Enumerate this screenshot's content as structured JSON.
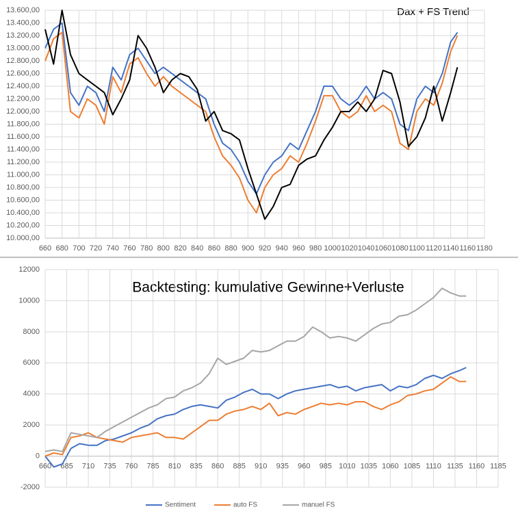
{
  "chart_data": [
    {
      "type": "line",
      "title": "Dax + FS Trend",
      "x": [
        660,
        670,
        680,
        690,
        700,
        710,
        720,
        730,
        740,
        750,
        760,
        770,
        780,
        790,
        800,
        810,
        820,
        830,
        840,
        850,
        860,
        870,
        880,
        890,
        900,
        910,
        920,
        930,
        940,
        950,
        960,
        970,
        980,
        990,
        1000,
        1010,
        1020,
        1030,
        1040,
        1050,
        1060,
        1070,
        1080,
        1090,
        1100,
        1110,
        1120,
        1130,
        1140,
        1148
      ],
      "series": [
        {
          "color": "#4472c4",
          "values": [
            13000,
            13300,
            13400,
            12300,
            12100,
            12400,
            12300,
            12000,
            12700,
            12500,
            12900,
            13000,
            12800,
            12600,
            12700,
            12600,
            12500,
            12400,
            12300,
            12200,
            11800,
            11500,
            11400,
            11200,
            10900,
            10700,
            11000,
            11200,
            11300,
            11500,
            11400,
            11700,
            12000,
            12400,
            12400,
            12200,
            12100,
            12200,
            12400,
            12200,
            12300,
            12200,
            11800,
            11700,
            12200,
            12400,
            12300,
            12600,
            13100,
            13250
          ]
        },
        {
          "color": "#ed7d31",
          "values": [
            12800,
            13150,
            13250,
            12000,
            11900,
            12200,
            12100,
            11800,
            12550,
            12300,
            12750,
            12850,
            12600,
            12400,
            12550,
            12400,
            12300,
            12200,
            12100,
            12000,
            11600,
            11300,
            11150,
            10950,
            10600,
            10400,
            10800,
            11000,
            11100,
            11300,
            11200,
            11500,
            11850,
            12250,
            12250,
            12000,
            11900,
            12000,
            12250,
            12000,
            12100,
            12000,
            11500,
            11400,
            12000,
            12200,
            12100,
            12450,
            12950,
            13200
          ]
        },
        {
          "color": "#000000",
          "values": [
            13300,
            12750,
            13600,
            12900,
            12600,
            12500,
            12400,
            12300,
            11950,
            12200,
            12500,
            13200,
            13000,
            12700,
            12300,
            12500,
            12600,
            12550,
            12350,
            11850,
            12000,
            11700,
            11650,
            11550,
            11100,
            10700,
            10300,
            10500,
            10800,
            10850,
            11150,
            11250,
            11300,
            11550,
            11750,
            12000,
            12000,
            12150,
            12000,
            12200,
            12650,
            12600,
            12150,
            11450,
            11600,
            11900,
            12400,
            11850,
            12300,
            12700
          ]
        }
      ],
      "xlim": [
        660,
        1180
      ],
      "xticks": [
        660,
        680,
        700,
        720,
        740,
        760,
        780,
        800,
        820,
        840,
        860,
        880,
        900,
        920,
        940,
        960,
        980,
        1000,
        1020,
        1040,
        1060,
        1080,
        1100,
        1120,
        1140,
        1160,
        1180
      ],
      "ylim": [
        10000,
        13600
      ],
      "yticks": [
        {
          "value": 10000,
          "label": "10.000,00"
        },
        {
          "value": 10200,
          "label": "10.200,00"
        },
        {
          "value": 10400,
          "label": "10.400,00"
        },
        {
          "value": 10600,
          "label": "10.600,00"
        },
        {
          "value": 10800,
          "label": "10.800,00"
        },
        {
          "value": 11000,
          "label": "11.000,00"
        },
        {
          "value": 11200,
          "label": "11.200,00"
        },
        {
          "value": 11400,
          "label": "11.400,00"
        },
        {
          "value": 11600,
          "label": "11.600,00"
        },
        {
          "value": 11800,
          "label": "11.800,00"
        },
        {
          "value": 12000,
          "label": "12.000,00"
        },
        {
          "value": 12200,
          "label": "12.200,00"
        },
        {
          "value": 12400,
          "label": "12.400,00"
        },
        {
          "value": 12600,
          "label": "12.600,00"
        },
        {
          "value": 12800,
          "label": "12.800,00"
        },
        {
          "value": 13000,
          "label": "13.000,00"
        },
        {
          "value": 13200,
          "label": "13.200,00"
        },
        {
          "value": 13400,
          "label": "13.400,00"
        },
        {
          "value": 13600,
          "label": "13.600,00"
        }
      ],
      "grid": true
    },
    {
      "type": "line",
      "title": "Backtesting: kumulative Gewinne+Verluste",
      "x": [
        660,
        670,
        680,
        690,
        700,
        710,
        720,
        730,
        740,
        750,
        760,
        770,
        780,
        790,
        800,
        810,
        820,
        830,
        840,
        850,
        860,
        870,
        880,
        890,
        900,
        910,
        920,
        930,
        940,
        950,
        960,
        970,
        980,
        990,
        1000,
        1010,
        1020,
        1030,
        1040,
        1050,
        1060,
        1070,
        1080,
        1090,
        1100,
        1110,
        1120,
        1130,
        1140,
        1148
      ],
      "series": [
        {
          "name": "Sentiment",
          "color": "#4472c4",
          "values": [
            0,
            -700,
            -500,
            500,
            800,
            700,
            700,
            1000,
            1100,
            1300,
            1500,
            1800,
            2000,
            2400,
            2600,
            2700,
            3000,
            3200,
            3300,
            3200,
            3100,
            3600,
            3800,
            4100,
            4300,
            4000,
            4000,
            3700,
            4000,
            4200,
            4300,
            4400,
            4500,
            4600,
            4400,
            4500,
            4200,
            4400,
            4500,
            4600,
            4200,
            4500,
            4400,
            4600,
            5000,
            5200,
            5000,
            5300,
            5500,
            5700
          ]
        },
        {
          "name": "auto FS",
          "color": "#ed7d31",
          "values": [
            0,
            200,
            100,
            1200,
            1300,
            1500,
            1200,
            1100,
            1000,
            900,
            1200,
            1300,
            1400,
            1500,
            1200,
            1200,
            1100,
            1500,
            1900,
            2300,
            2300,
            2700,
            2900,
            3000,
            3200,
            3000,
            3400,
            2600,
            2800,
            2700,
            3000,
            3200,
            3400,
            3300,
            3400,
            3300,
            3500,
            3500,
            3200,
            3000,
            3300,
            3500,
            3900,
            4000,
            4200,
            4300,
            4700,
            5100,
            4800,
            4800
          ]
        },
        {
          "name": "manuel FS",
          "color": "#a5a5a5",
          "values": [
            300,
            400,
            300,
            1500,
            1400,
            1300,
            1200,
            1600,
            1900,
            2200,
            2500,
            2800,
            3100,
            3300,
            3700,
            3800,
            4200,
            4400,
            4700,
            5300,
            6300,
            5900,
            6100,
            6300,
            6800,
            6700,
            6800,
            7100,
            7400,
            7400,
            7700,
            8300,
            8000,
            7600,
            7700,
            7600,
            7400,
            7800,
            8200,
            8500,
            8600,
            9000,
            9100,
            9400,
            9800,
            10200,
            10800,
            10500,
            10300,
            10300
          ]
        }
      ],
      "xlim": [
        660,
        1185
      ],
      "xticks": [
        660,
        685,
        710,
        735,
        760,
        785,
        810,
        835,
        860,
        885,
        910,
        935,
        960,
        985,
        1010,
        1035,
        1060,
        1085,
        1110,
        1135,
        1160,
        1185
      ],
      "ylim": [
        -2000,
        12000
      ],
      "yticks": [
        -2000,
        0,
        2000,
        4000,
        6000,
        8000,
        10000,
        12000
      ],
      "grid": true,
      "legend": "bottom"
    }
  ]
}
